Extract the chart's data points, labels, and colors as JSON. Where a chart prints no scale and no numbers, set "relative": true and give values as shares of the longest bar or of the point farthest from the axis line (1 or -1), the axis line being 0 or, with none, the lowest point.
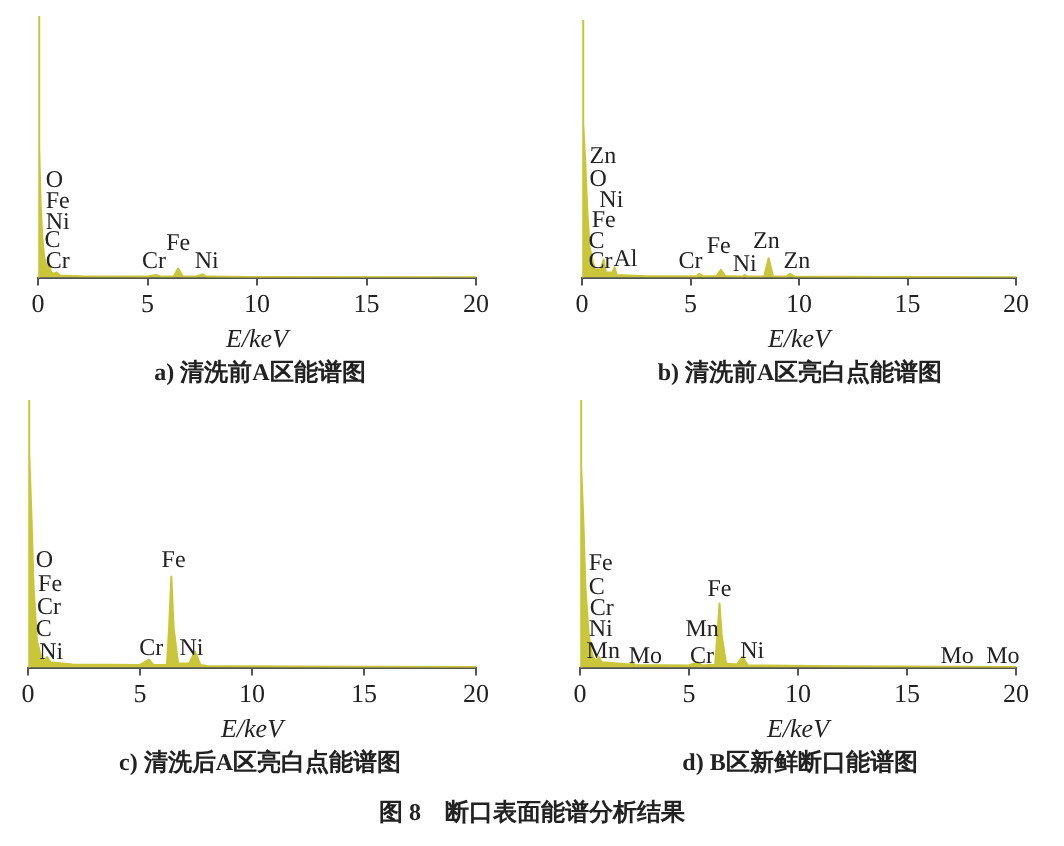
{
  "chart_data": [
    {
      "type": "area",
      "title": "a) 清洗前A区能谱图",
      "xlabel": "E/keV",
      "relative": true,
      "legend": false,
      "grid": false,
      "tick_labels": "x",
      "xlim": [
        0,
        20
      ],
      "xticks": [
        0,
        5,
        10,
        15,
        20
      ],
      "series": [
        {
          "color": "#c9c63a",
          "x": [
            0,
            0.03,
            0.08,
            0.12,
            0.2,
            0.28,
            0.4,
            0.52,
            0.6,
            0.75,
            0.85,
            1,
            2,
            5,
            5.4,
            5.6,
            6.2,
            6.4,
            6.6,
            7.2,
            7.5,
            7.7,
            10,
            20
          ],
          "values": [
            0,
            1,
            0.5,
            0.28,
            0.15,
            0.08,
            0.04,
            0.05,
            0.02,
            0.015,
            0.02,
            0.008,
            0.005,
            0.004,
            0.01,
            0.004,
            0.005,
            0.035,
            0.005,
            0.004,
            0.012,
            0.004,
            0.002,
            0.001
          ]
        }
      ],
      "annotations": [
        "O",
        "Fe",
        "Ni",
        "C",
        "Cr",
        "Cr",
        "Fe",
        "Ni"
      ]
    },
    {
      "type": "area",
      "title": "b) 清洗前A区亮白点能谱图",
      "xlabel": "E/keV",
      "relative": true,
      "legend": false,
      "grid": false,
      "tick_labels": "x",
      "xlim": [
        0,
        20
      ],
      "xticks": [
        0,
        5,
        10,
        15,
        20
      ],
      "series": [
        {
          "color": "#c9c63a",
          "x": [
            0,
            0.03,
            0.08,
            0.15,
            0.25,
            0.35,
            0.5,
            0.6,
            0.85,
            1,
            1.1,
            1.4,
            1.5,
            1.6,
            3,
            5.3,
            5.4,
            5.6,
            6.2,
            6.4,
            6.6,
            7.4,
            7.5,
            7.6,
            8.4,
            8.6,
            8.8,
            9.4,
            9.6,
            9.8,
            12,
            20
          ],
          "values": [
            0,
            1,
            0.6,
            0.45,
            0.25,
            0.12,
            0.06,
            0.03,
            0.03,
            0.07,
            0.02,
            0.02,
            0.04,
            0.01,
            0.005,
            0.005,
            0.015,
            0.005,
            0.006,
            0.03,
            0.006,
            0.004,
            0.01,
            0.004,
            0.005,
            0.075,
            0.005,
            0.004,
            0.015,
            0.004,
            0.003,
            0.001
          ]
        }
      ],
      "annotations": [
        "Zn",
        "O",
        "Ni",
        "Fe",
        "C",
        "Cr",
        "Al",
        "Cr",
        "Fe",
        "Ni",
        "Zn",
        "Zn"
      ]
    },
    {
      "type": "area",
      "title": "c) 清洗后A区亮白点能谱图",
      "xlabel": "E/keV",
      "relative": true,
      "legend": false,
      "grid": false,
      "tick_labels": "x",
      "xlim": [
        0,
        20
      ],
      "xticks": [
        0,
        5,
        10,
        15,
        20
      ],
      "series": [
        {
          "color": "#c9c63a",
          "x": [
            0,
            0.03,
            0.08,
            0.15,
            0.25,
            0.4,
            0.52,
            0.6,
            0.75,
            0.85,
            1,
            2,
            5,
            5.4,
            5.6,
            6.2,
            6.3,
            6.4,
            6.5,
            6.7,
            7.2,
            7.45,
            7.7,
            8,
            12,
            20
          ],
          "values": [
            0,
            1,
            0.8,
            0.58,
            0.3,
            0.1,
            0.06,
            0.04,
            0.02,
            0.04,
            0.02,
            0.012,
            0.01,
            0.03,
            0.01,
            0.01,
            0.15,
            0.34,
            0.15,
            0.015,
            0.015,
            0.06,
            0.01,
            0.006,
            0.004,
            0.002
          ]
        }
      ],
      "annotations": [
        "O",
        "Fe",
        "Cr",
        "C",
        "Ni",
        "Cr",
        "Fe",
        "Ni"
      ]
    },
    {
      "type": "area",
      "title": "d) B区新鲜断口能谱图",
      "xlabel": "E/keV",
      "relative": true,
      "legend": false,
      "grid": false,
      "tick_labels": "x",
      "xlim": [
        0,
        20
      ],
      "xticks": [
        0,
        5,
        10,
        15,
        20
      ],
      "series": [
        {
          "color": "#c9c63a",
          "x": [
            0,
            0.03,
            0.08,
            0.15,
            0.25,
            0.4,
            0.52,
            0.6,
            0.75,
            0.85,
            1,
            2.3,
            2.4,
            2.5,
            5,
            5.4,
            5.6,
            5.9,
            6.2,
            6.3,
            6.4,
            6.5,
            6.7,
            7.2,
            7.45,
            7.7,
            12,
            17.5,
            20
          ],
          "values": [
            0,
            1,
            0.75,
            0.56,
            0.3,
            0.12,
            0.06,
            0.04,
            0.02,
            0.04,
            0.02,
            0.012,
            0.02,
            0.01,
            0.008,
            0.02,
            0.008,
            0.01,
            0.01,
            0.12,
            0.24,
            0.12,
            0.015,
            0.012,
            0.04,
            0.008,
            0.005,
            0.003,
            0.002
          ]
        }
      ],
      "annotations": [
        "Fe",
        "C",
        "Cr",
        "Ni",
        "Mn",
        "Mo",
        "Mn",
        "Cr",
        "Fe",
        "Ni",
        "Mo",
        "Mo",
        "图 8　断口表面能谱分析结果"
      ]
    }
  ]
}
